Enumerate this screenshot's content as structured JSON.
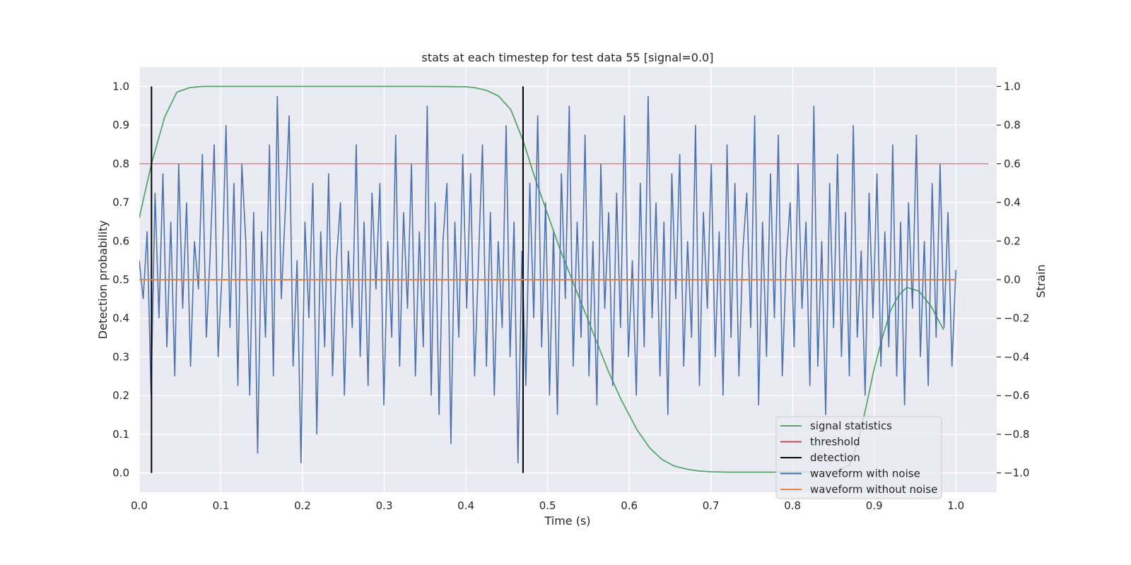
{
  "chart_data": {
    "type": "line",
    "title": "stats at each timestep for test data 55 [signal=0.0]",
    "xlabel": "Time (s)",
    "ylabel_left": "Detection probability",
    "ylabel_right": "Strain",
    "xlim": [
      0.0,
      1.05
    ],
    "ylim_left": [
      -0.05,
      1.05
    ],
    "ylim_right": [
      -1.1,
      1.1
    ],
    "x_ticks": [
      "0.0",
      "0.1",
      "0.2",
      "0.3",
      "0.4",
      "0.5",
      "0.6",
      "0.7",
      "0.8",
      "0.9",
      "1.0"
    ],
    "y_ticks_left": [
      "0.0",
      "0.1",
      "0.2",
      "0.3",
      "0.4",
      "0.5",
      "0.6",
      "0.7",
      "0.8",
      "0.9",
      "1.0"
    ],
    "y_ticks_right": [
      "−1.0",
      "−0.8",
      "−0.6",
      "−0.4",
      "−0.2",
      "0.0",
      "0.2",
      "0.4",
      "0.6",
      "0.8",
      "1.0"
    ],
    "grid": true,
    "legend_position": "lower-right",
    "colors": {
      "background": "#eaeaf2",
      "grid": "#ffffff",
      "signal_statistics": "#55a868",
      "threshold": "#c44e52",
      "detection": "#000000",
      "waveform_with_noise": "#4c72b0",
      "waveform_without_noise": "#dd8452"
    },
    "series": [
      {
        "name": "signal statistics",
        "axis": "left",
        "x": [
          0.0,
          0.015,
          0.031,
          0.046,
          0.062,
          0.077,
          0.1,
          0.15,
          0.2,
          0.25,
          0.3,
          0.35,
          0.4,
          0.41,
          0.425,
          0.44,
          0.455,
          0.47,
          0.485,
          0.5,
          0.515,
          0.53,
          0.545,
          0.56,
          0.575,
          0.59,
          0.61,
          0.625,
          0.64,
          0.655,
          0.67,
          0.685,
          0.7,
          0.72,
          0.75,
          0.8,
          0.85,
          0.87,
          0.88,
          0.89,
          0.9,
          0.91,
          0.92,
          0.93,
          0.94,
          0.955,
          0.97,
          0.985
        ],
        "values": [
          0.66,
          0.8,
          0.92,
          0.985,
          0.997,
          1.0,
          1.0,
          1.0,
          1.0,
          1.0,
          1.0,
          1.0,
          0.999,
          0.997,
          0.99,
          0.975,
          0.94,
          0.86,
          0.76,
          0.67,
          0.58,
          0.5,
          0.42,
          0.34,
          0.26,
          0.19,
          0.11,
          0.065,
          0.035,
          0.018,
          0.01,
          0.005,
          0.003,
          0.002,
          0.002,
          0.002,
          0.003,
          0.02,
          0.08,
          0.17,
          0.27,
          0.35,
          0.42,
          0.46,
          0.48,
          0.47,
          0.43,
          0.37
        ]
      },
      {
        "name": "threshold",
        "axis": "left",
        "x": [
          0.0,
          1.04
        ],
        "values": [
          0.8,
          0.8
        ]
      },
      {
        "name": "detection",
        "axis": "left",
        "segments": [
          {
            "x": 0.015,
            "y": [
              0.0,
              1.0
            ]
          },
          {
            "x": 0.47,
            "y": [
              0.0,
              1.0
            ]
          }
        ]
      },
      {
        "name": "waveform with noise",
        "axis": "right",
        "x_start": 0.0,
        "x_end": 1.0,
        "values": [
          0.1,
          -0.1,
          0.25,
          -0.6,
          0.45,
          -0.2,
          0.55,
          -0.35,
          0.3,
          -0.5,
          0.6,
          -0.15,
          0.4,
          -0.45,
          0.2,
          -0.05,
          0.65,
          -0.3,
          0.15,
          0.7,
          -0.4,
          0.05,
          0.8,
          -0.25,
          0.5,
          -0.55,
          0.6,
          0.2,
          -0.6,
          0.35,
          -0.9,
          0.25,
          -0.3,
          0.7,
          -0.5,
          0.95,
          -0.1,
          0.35,
          0.85,
          -0.45,
          0.1,
          -0.95,
          0.3,
          -0.2,
          0.5,
          -0.8,
          0.25,
          -0.35,
          0.55,
          -0.5,
          0.1,
          0.4,
          -0.6,
          0.15,
          -0.25,
          0.7,
          -0.4,
          0.3,
          -0.55,
          0.45,
          -0.05,
          0.5,
          -0.65,
          0.2,
          -0.3,
          0.75,
          -0.45,
          0.35,
          -0.15,
          0.6,
          -0.5,
          0.25,
          -0.35,
          0.9,
          -0.6,
          0.4,
          -0.7,
          0.2,
          0.5,
          -0.85,
          0.3,
          -0.3,
          0.65,
          -0.15,
          0.55,
          -0.5,
          0.1,
          0.7,
          -0.45,
          0.35,
          -0.6,
          0.2,
          -0.25,
          0.8,
          -0.4,
          0.3,
          -0.95,
          0.15,
          -0.55,
          0.5,
          -0.2,
          0.85,
          -0.35,
          0.4,
          -0.6,
          0.25,
          -0.7,
          0.55,
          -0.1,
          0.9,
          -0.45,
          0.3,
          -0.3,
          0.75,
          -0.5,
          0.2,
          -0.65,
          0.6,
          -0.15,
          0.35,
          -0.55,
          0.45,
          -0.25,
          0.85,
          -0.4,
          0.1,
          -0.6,
          0.5,
          -0.35,
          0.95,
          -0.2,
          0.4,
          -0.5,
          0.3,
          -0.7,
          0.55,
          -0.1,
          0.65,
          -0.45,
          0.2,
          -0.3,
          0.8,
          -0.55,
          0.35,
          -0.15,
          0.6,
          -0.4,
          0.25,
          -0.6,
          0.7,
          -0.3,
          0.5,
          -0.5,
          0.15,
          0.45,
          -0.25,
          0.85,
          -0.65,
          0.3,
          -0.4,
          0.55,
          -0.2,
          0.75,
          -0.5,
          0.1,
          0.4,
          -0.35,
          0.6,
          -0.15,
          0.3,
          -0.55,
          0.9,
          -0.45,
          0.2,
          -0.7,
          0.5,
          -0.25,
          0.65,
          -0.4,
          0.35,
          -0.5,
          0.8,
          -0.3,
          0.15,
          -0.6,
          0.45,
          -0.2,
          0.55,
          -0.45,
          0.25,
          -0.35,
          0.7,
          -0.5,
          0.3,
          -0.65,
          0.4,
          -0.15,
          0.75,
          -0.4,
          0.2,
          -0.55,
          0.5,
          -0.3,
          0.6,
          -0.25,
          0.35,
          -0.45,
          0.05
        ]
      },
      {
        "name": "waveform without noise",
        "axis": "right",
        "x": [
          0.0,
          1.0
        ],
        "values": [
          0.0,
          0.0
        ]
      }
    ]
  }
}
